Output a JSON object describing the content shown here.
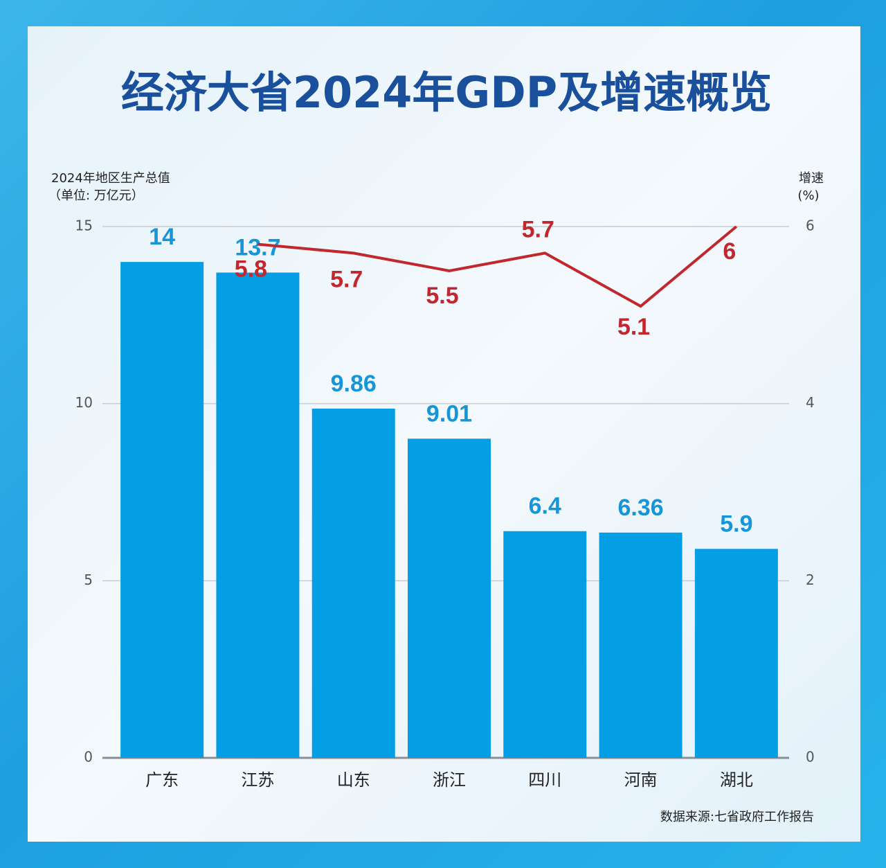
{
  "chart_data": {
    "type": "bar",
    "title": "经济大省2024年GDP及增速概览",
    "y_axis_label": [
      "2024年地区生产总值",
      "（单位: 万亿元）"
    ],
    "y2_axis_label": [
      "增速",
      "(%)"
    ],
    "source": "数据来源:七省政府工作报告",
    "categories": [
      "广东",
      "江苏",
      "山东",
      "浙江",
      "四川",
      "河南",
      "湖北"
    ],
    "series": [
      {
        "type": "bar",
        "color": "#039ee4",
        "values": [
          14,
          13.7,
          9.86,
          9.01,
          6.4,
          6.36,
          5.9
        ]
      },
      {
        "type": "line",
        "axis": "y2",
        "color": "#c1272d",
        "values": [
          null,
          5.8,
          5.7,
          5.5,
          5.7,
          5.1,
          6
        ]
      }
    ],
    "ylim": [
      0,
      15
    ],
    "yticks": [
      0,
      5,
      10,
      15
    ],
    "y2lim": [
      0,
      6
    ],
    "y2ticks": [
      0,
      2,
      4,
      6
    ],
    "grid": true
  }
}
